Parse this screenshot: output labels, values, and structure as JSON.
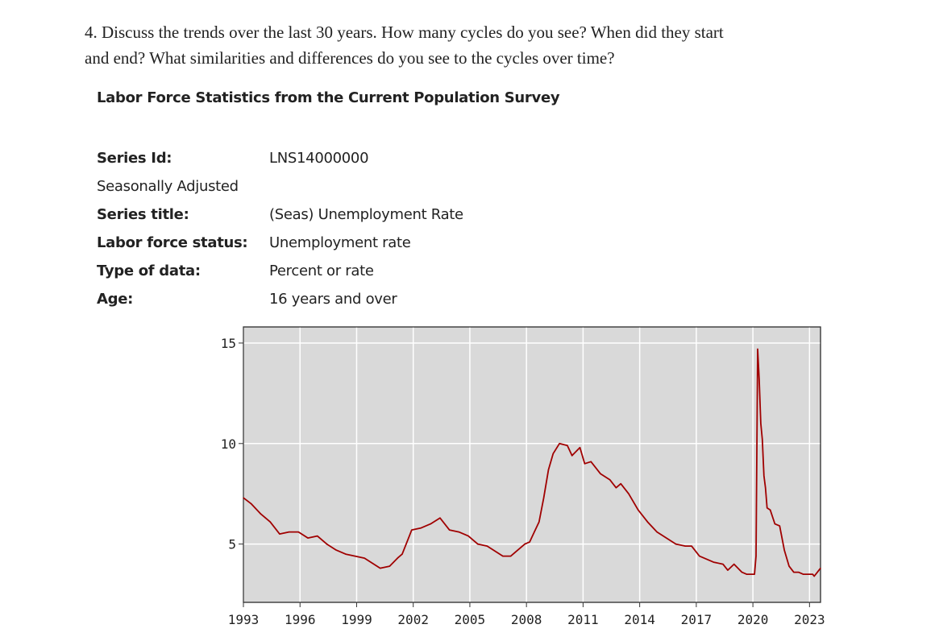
{
  "question": {
    "line1": "4. Discuss the trends over the last 30 years. How many cycles do you see? When did they start",
    "line2": "and end? What similarities and differences do you see to the cycles over time?"
  },
  "heading": "Labor Force Statistics from the Current Population Survey",
  "details": [
    {
      "label": "Series Id:",
      "value": "LNS14000000",
      "bold": true
    },
    {
      "label": "Seasonally Adjusted",
      "value": "",
      "bold": false
    },
    {
      "label": "Series title:",
      "value": "(Seas) Unemployment Rate",
      "bold": true
    },
    {
      "label": "Labor force status:",
      "value": "Unemployment rate",
      "bold": true
    },
    {
      "label": "Type of data:",
      "value": "Percent or rate",
      "bold": true
    },
    {
      "label": "Age:",
      "value": "16 years and over",
      "bold": true
    }
  ],
  "chart_data": {
    "type": "line",
    "title": "",
    "xlabel": "",
    "ylabel": "",
    "xlim": [
      "1993-01",
      "2023-08"
    ],
    "ylim": [
      2.1,
      15.8
    ],
    "grid": true,
    "line_color": "#a00000",
    "background": "#d9d9d9",
    "x_ticks": [
      "1993",
      "1996",
      "1999",
      "2002",
      "2005",
      "2008",
      "2011",
      "2014",
      "2017",
      "2020",
      "2023"
    ],
    "y_ticks": [
      5,
      10,
      15
    ],
    "series": [
      {
        "points": [
          [
            "1993-01",
            7.3
          ],
          [
            "1993-06",
            7.0
          ],
          [
            "1993-12",
            6.5
          ],
          [
            "1994-06",
            6.1
          ],
          [
            "1994-12",
            5.5
          ],
          [
            "1995-06",
            5.6
          ],
          [
            "1995-12",
            5.6
          ],
          [
            "1996-06",
            5.3
          ],
          [
            "1996-12",
            5.4
          ],
          [
            "1997-06",
            5.0
          ],
          [
            "1997-12",
            4.7
          ],
          [
            "1998-06",
            4.5
          ],
          [
            "1998-12",
            4.4
          ],
          [
            "1999-06",
            4.3
          ],
          [
            "1999-12",
            4.0
          ],
          [
            "2000-04",
            3.8
          ],
          [
            "2000-10",
            3.9
          ],
          [
            "2001-03",
            4.3
          ],
          [
            "2001-06",
            4.5
          ],
          [
            "2001-10",
            5.3
          ],
          [
            "2001-12",
            5.7
          ],
          [
            "2002-06",
            5.8
          ],
          [
            "2002-12",
            6.0
          ],
          [
            "2003-06",
            6.3
          ],
          [
            "2003-12",
            5.7
          ],
          [
            "2004-06",
            5.6
          ],
          [
            "2004-12",
            5.4
          ],
          [
            "2005-06",
            5.0
          ],
          [
            "2005-12",
            4.9
          ],
          [
            "2006-06",
            4.6
          ],
          [
            "2006-10",
            4.4
          ],
          [
            "2007-03",
            4.4
          ],
          [
            "2007-06",
            4.6
          ],
          [
            "2007-12",
            5.0
          ],
          [
            "2008-03",
            5.1
          ],
          [
            "2008-06",
            5.6
          ],
          [
            "2008-09",
            6.1
          ],
          [
            "2008-12",
            7.3
          ],
          [
            "2009-03",
            8.7
          ],
          [
            "2009-06",
            9.5
          ],
          [
            "2009-10",
            10.0
          ],
          [
            "2010-03",
            9.9
          ],
          [
            "2010-06",
            9.4
          ],
          [
            "2010-11",
            9.8
          ],
          [
            "2011-02",
            9.0
          ],
          [
            "2011-06",
            9.1
          ],
          [
            "2011-12",
            8.5
          ],
          [
            "2012-06",
            8.2
          ],
          [
            "2012-10",
            7.8
          ],
          [
            "2013-01",
            8.0
          ],
          [
            "2013-06",
            7.5
          ],
          [
            "2013-12",
            6.7
          ],
          [
            "2014-06",
            6.1
          ],
          [
            "2014-12",
            5.6
          ],
          [
            "2015-06",
            5.3
          ],
          [
            "2015-12",
            5.0
          ],
          [
            "2016-06",
            4.9
          ],
          [
            "2016-10",
            4.9
          ],
          [
            "2017-03",
            4.4
          ],
          [
            "2017-12",
            4.1
          ],
          [
            "2018-06",
            4.0
          ],
          [
            "2018-09",
            3.7
          ],
          [
            "2019-01",
            4.0
          ],
          [
            "2019-06",
            3.6
          ],
          [
            "2019-09",
            3.5
          ],
          [
            "2020-01",
            3.5
          ],
          [
            "2020-02",
            3.5
          ],
          [
            "2020-03",
            4.4
          ],
          [
            "2020-04",
            14.7
          ],
          [
            "2020-05",
            13.2
          ],
          [
            "2020-06",
            11.0
          ],
          [
            "2020-07",
            10.2
          ],
          [
            "2020-08",
            8.4
          ],
          [
            "2020-09",
            7.8
          ],
          [
            "2020-10",
            6.8
          ],
          [
            "2020-12",
            6.7
          ],
          [
            "2021-03",
            6.0
          ],
          [
            "2021-06",
            5.9
          ],
          [
            "2021-09",
            4.7
          ],
          [
            "2021-12",
            3.9
          ],
          [
            "2022-03",
            3.6
          ],
          [
            "2022-06",
            3.6
          ],
          [
            "2022-09",
            3.5
          ],
          [
            "2022-12",
            3.5
          ],
          [
            "2023-03",
            3.5
          ],
          [
            "2023-04",
            3.4
          ],
          [
            "2023-06",
            3.6
          ],
          [
            "2023-08",
            3.8
          ]
        ]
      }
    ]
  }
}
